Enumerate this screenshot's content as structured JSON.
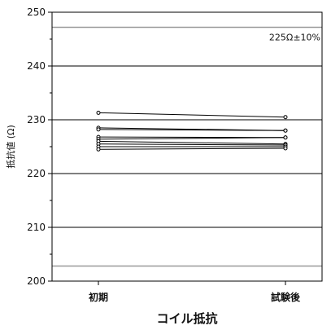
{
  "chart_data": {
    "type": "line",
    "categories": [
      "初期",
      "試験後"
    ],
    "xlabel": "コイル抵抗",
    "ylabel": "抵抗値 (Ω)",
    "ylim": [
      200,
      250
    ],
    "yticks": [
      200,
      210,
      220,
      230,
      240,
      250
    ],
    "grid": true,
    "reference_lines": [
      {
        "value": 247.2,
        "label": "225Ω±10%"
      },
      {
        "value": 202.8,
        "label": ""
      }
    ],
    "series": [
      {
        "values": [
          231.3,
          230.5
        ]
      },
      {
        "values": [
          228.5,
          228.0
        ]
      },
      {
        "values": [
          228.2,
          228.0
        ]
      },
      {
        "values": [
          226.8,
          226.7
        ]
      },
      {
        "values": [
          226.4,
          226.7
        ]
      },
      {
        "values": [
          226.0,
          225.5
        ]
      },
      {
        "values": [
          225.5,
          225.3
        ]
      },
      {
        "values": [
          225.0,
          225.0
        ]
      },
      {
        "values": [
          224.5,
          224.7
        ]
      }
    ],
    "colors": {
      "line": "#000000",
      "grid": "#000000",
      "reference": "#999999",
      "marker_fill": "#ffffff"
    }
  }
}
